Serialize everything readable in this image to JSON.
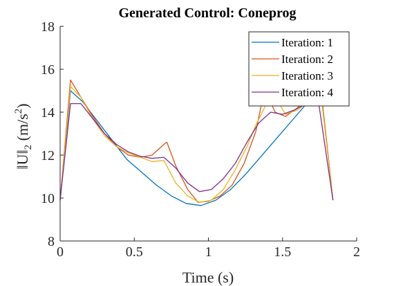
{
  "chart_data": {
    "type": "line",
    "title": "Generated Control: Coneprog",
    "xlabel": "Time (s)",
    "ylabel_parts": {
      "norm": "‖U‖",
      "sub": "2",
      "unit": " (m/s",
      "sup": "2",
      "close": ")"
    },
    "xlim": [
      0,
      2
    ],
    "ylim": [
      8,
      18
    ],
    "xticks": [
      0,
      0.5,
      1,
      1.5,
      2
    ],
    "xtick_labels": [
      "0",
      "0.5",
      "1",
      "1.5",
      "2"
    ],
    "yticks": [
      8,
      10,
      12,
      14,
      16,
      18
    ],
    "ytick_labels": [
      "8",
      "10",
      "12",
      "14",
      "16",
      "18"
    ],
    "legend_position": "top-right",
    "grid": false,
    "series": [
      {
        "name": "Iteration: 1",
        "color": "#0072BD",
        "x": [
          0,
          0.07,
          0.15,
          0.25,
          0.35,
          0.45,
          0.55,
          0.65,
          0.75,
          0.85,
          0.95,
          1.05,
          1.15,
          1.25,
          1.35,
          1.45,
          1.55,
          1.65,
          1.75,
          1.76,
          1.84
        ],
        "y": [
          9.9,
          15.0,
          14.5,
          13.6,
          12.7,
          11.8,
          11.2,
          10.6,
          10.1,
          9.75,
          9.65,
          9.9,
          10.4,
          11.1,
          11.9,
          12.7,
          13.5,
          14.3,
          14.9,
          15.0,
          9.9
        ]
      },
      {
        "name": "Iteration: 2",
        "color": "#D95319",
        "x": [
          0,
          0.07,
          0.14,
          0.22,
          0.3,
          0.38,
          0.46,
          0.54,
          0.62,
          0.7,
          0.72,
          0.78,
          0.86,
          0.93,
          1.0,
          1.08,
          1.16,
          1.24,
          1.32,
          1.38,
          1.45,
          1.52,
          1.6,
          1.68,
          1.76,
          1.84
        ],
        "y": [
          9.9,
          15.5,
          14.7,
          13.8,
          13.0,
          12.4,
          12.0,
          11.9,
          12.0,
          12.5,
          12.6,
          11.5,
          10.4,
          9.8,
          9.85,
          10.1,
          10.6,
          11.6,
          13.1,
          15.1,
          14.0,
          13.8,
          14.2,
          14.8,
          15.0,
          9.9
        ]
      },
      {
        "name": "Iteration: 3",
        "color": "#EDB120",
        "x": [
          0,
          0.07,
          0.14,
          0.22,
          0.3,
          0.38,
          0.46,
          0.54,
          0.62,
          0.7,
          0.78,
          0.86,
          0.94,
          1.02,
          1.1,
          1.18,
          1.26,
          1.32,
          1.4,
          1.46,
          1.52,
          1.6,
          1.68,
          1.76,
          1.84
        ],
        "y": [
          9.9,
          15.2,
          14.7,
          13.7,
          12.9,
          12.4,
          12.1,
          11.9,
          11.7,
          11.75,
          10.7,
          10.1,
          9.8,
          9.9,
          10.4,
          11.3,
          12.4,
          13.4,
          14.5,
          14.6,
          13.9,
          14.1,
          14.5,
          14.8,
          9.9
        ]
      },
      {
        "name": "Iteration: 4",
        "color": "#7E2F8E",
        "x": [
          0,
          0.07,
          0.14,
          0.22,
          0.3,
          0.38,
          0.46,
          0.54,
          0.62,
          0.7,
          0.78,
          0.86,
          0.94,
          1.02,
          1.1,
          1.18,
          1.26,
          1.34,
          1.42,
          1.5,
          1.58,
          1.66,
          1.74,
          1.84
        ],
        "y": [
          9.9,
          14.4,
          14.4,
          13.7,
          13.0,
          12.5,
          12.15,
          11.95,
          11.85,
          11.9,
          11.4,
          10.7,
          10.3,
          10.4,
          10.9,
          11.6,
          12.6,
          13.5,
          14.0,
          13.9,
          14.1,
          14.4,
          14.6,
          9.9
        ]
      }
    ]
  }
}
